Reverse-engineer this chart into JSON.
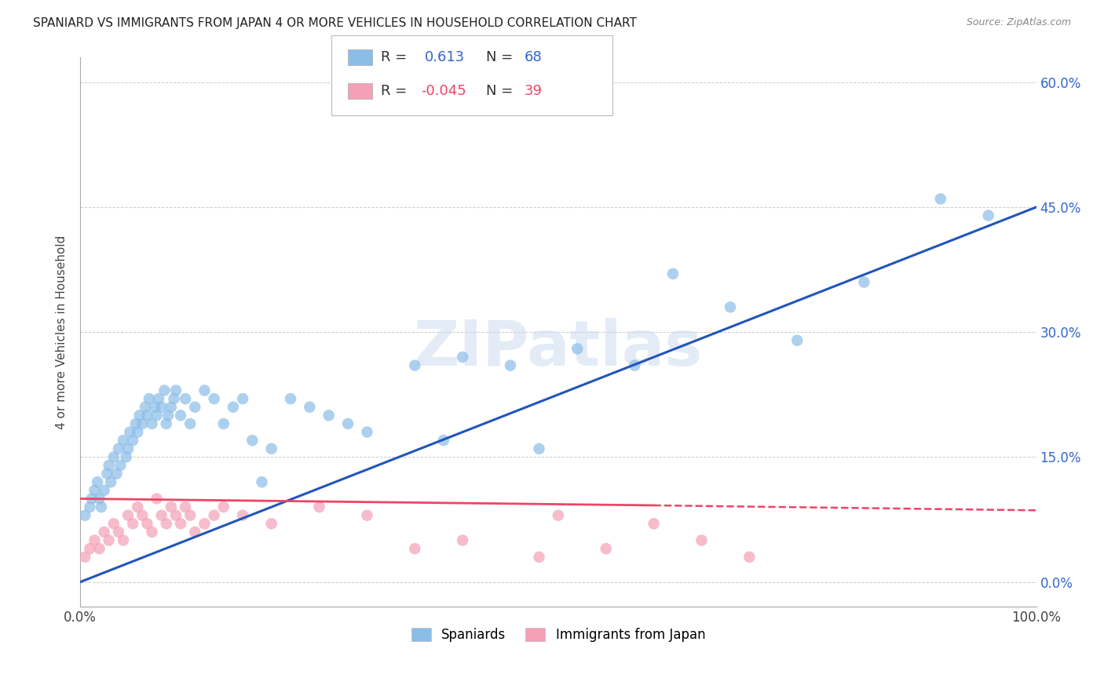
{
  "title": "SPANIARD VS IMMIGRANTS FROM JAPAN 4 OR MORE VEHICLES IN HOUSEHOLD CORRELATION CHART",
  "source": "Source: ZipAtlas.com",
  "ylabel": "4 or more Vehicles in Household",
  "xlim": [
    0,
    100
  ],
  "ylim": [
    -3,
    63
  ],
  "xticks": [
    0,
    20,
    40,
    60,
    80,
    100
  ],
  "xticklabels": [
    "0.0%",
    "",
    "",
    "",
    "",
    "100.0%"
  ],
  "yticks": [
    0,
    15,
    30,
    45,
    60
  ],
  "yticklabels": [
    "0.0%",
    "15.0%",
    "30.0%",
    "45.0%",
    "60.0%"
  ],
  "r_spaniard": 0.613,
  "n_spaniard": 68,
  "r_japan": -0.045,
  "n_japan": 39,
  "color_spaniard": "#8BBDE8",
  "color_japan": "#F4A0B5",
  "line_color_spaniard": "#2255BB",
  "line_color_japan": "#EE4466",
  "watermark": "ZIPatlas",
  "legend_label_spaniard": "Spaniards",
  "legend_label_japan": "Immigrants from Japan",
  "spaniard_x": [
    0.5,
    1.0,
    1.2,
    1.5,
    1.8,
    2.0,
    2.2,
    2.5,
    2.8,
    3.0,
    3.2,
    3.5,
    3.8,
    4.0,
    4.2,
    4.5,
    4.8,
    5.0,
    5.2,
    5.5,
    5.8,
    6.0,
    6.2,
    6.5,
    6.8,
    7.0,
    7.2,
    7.5,
    7.8,
    8.0,
    8.2,
    8.5,
    8.8,
    9.0,
    9.2,
    9.5,
    9.8,
    10.0,
    10.5,
    11.0,
    11.5,
    12.0,
    13.0,
    14.0,
    15.0,
    16.0,
    17.0,
    18.0,
    19.0,
    20.0,
    22.0,
    24.0,
    26.0,
    28.0,
    30.0,
    35.0,
    38.0,
    40.0,
    45.0,
    48.0,
    52.0,
    58.0,
    62.0,
    68.0,
    75.0,
    82.0,
    90.0,
    95.0
  ],
  "spaniard_y": [
    8,
    9,
    10,
    11,
    12,
    10,
    9,
    11,
    13,
    14,
    12,
    15,
    13,
    16,
    14,
    17,
    15,
    16,
    18,
    17,
    19,
    18,
    20,
    19,
    21,
    20,
    22,
    19,
    21,
    20,
    22,
    21,
    23,
    19,
    20,
    21,
    22,
    23,
    20,
    22,
    19,
    21,
    23,
    22,
    19,
    21,
    22,
    17,
    12,
    16,
    22,
    21,
    20,
    19,
    18,
    26,
    17,
    27,
    26,
    16,
    28,
    26,
    37,
    33,
    29,
    36,
    46,
    44
  ],
  "japan_x": [
    0.5,
    1.0,
    1.5,
    2.0,
    2.5,
    3.0,
    3.5,
    4.0,
    4.5,
    5.0,
    5.5,
    6.0,
    6.5,
    7.0,
    7.5,
    8.0,
    8.5,
    9.0,
    9.5,
    10.0,
    10.5,
    11.0,
    11.5,
    12.0,
    13.0,
    14.0,
    15.0,
    17.0,
    20.0,
    25.0,
    30.0,
    35.0,
    40.0,
    48.0,
    50.0,
    55.0,
    60.0,
    65.0,
    70.0
  ],
  "japan_y": [
    3,
    4,
    5,
    4,
    6,
    5,
    7,
    6,
    5,
    8,
    7,
    9,
    8,
    7,
    6,
    10,
    8,
    7,
    9,
    8,
    7,
    9,
    8,
    6,
    7,
    8,
    9,
    8,
    7,
    9,
    8,
    4,
    5,
    3,
    8,
    4,
    7,
    5,
    3
  ]
}
